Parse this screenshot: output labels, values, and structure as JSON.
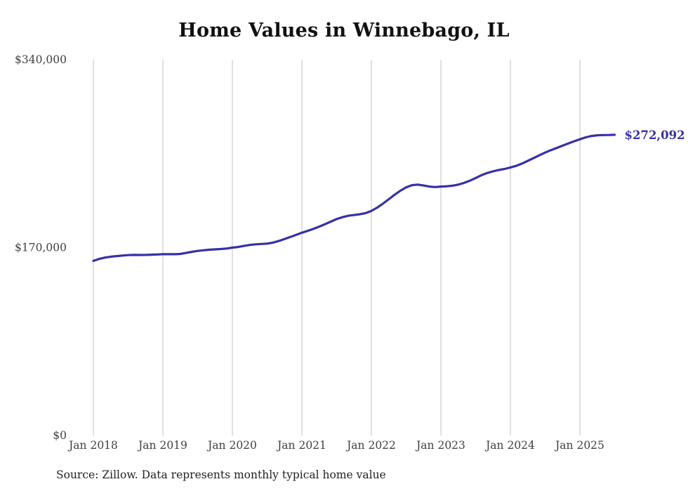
{
  "title": "Home Values in Winnebago, IL",
  "source_note": "Source: Zillow. Data represents monthly typical home value",
  "latest_value_label": "$272,092",
  "colors": {
    "line": "#3531a8",
    "grid": "#cccccc",
    "tick_text": "#3f3f3f",
    "title_text": "#111111"
  },
  "chart_data": {
    "type": "line",
    "title": "Home Values in Winnebago, IL",
    "series_name": "Monthly typical home value",
    "x_start": "Jan 2018",
    "x_end": "Jul 2025",
    "x_tick_labels": [
      "Jan 2018",
      "Jan 2019",
      "Jan 2020",
      "Jan 2021",
      "Jan 2022",
      "Jan 2023",
      "Jan 2024",
      "Jan 2025"
    ],
    "y_ticks": [
      0,
      170000,
      340000
    ],
    "y_tick_labels": [
      "$0",
      "$170,000",
      "$340,000"
    ],
    "ylim": [
      0,
      340000
    ],
    "grid": "vertical-only",
    "legend": "none",
    "final_value": 272092,
    "final_value_label": "$272,092",
    "values": [
      158000,
      159800,
      161000,
      161800,
      162300,
      162800,
      163200,
      163400,
      163300,
      163400,
      163600,
      163800,
      164000,
      164100,
      164000,
      164300,
      165200,
      166200,
      167000,
      167600,
      168100,
      168400,
      168700,
      169200,
      170000,
      170600,
      171500,
      172400,
      173000,
      173300,
      173600,
      174500,
      176000,
      177800,
      179600,
      181500,
      183500,
      185200,
      187000,
      189000,
      191200,
      193500,
      195800,
      197500,
      198800,
      199500,
      200200,
      201200,
      203200,
      206200,
      209800,
      213800,
      217800,
      221500,
      224500,
      226500,
      227000,
      226200,
      225200,
      224800,
      225200,
      225500,
      226000,
      227000,
      228500,
      230500,
      233000,
      235500,
      237500,
      239000,
      240200,
      241200,
      242500,
      244000,
      246000,
      248500,
      251000,
      253500,
      256000,
      258200,
      260200,
      262200,
      264200,
      266200,
      268000,
      269800,
      271000,
      271600,
      271800,
      271900,
      272092
    ]
  }
}
